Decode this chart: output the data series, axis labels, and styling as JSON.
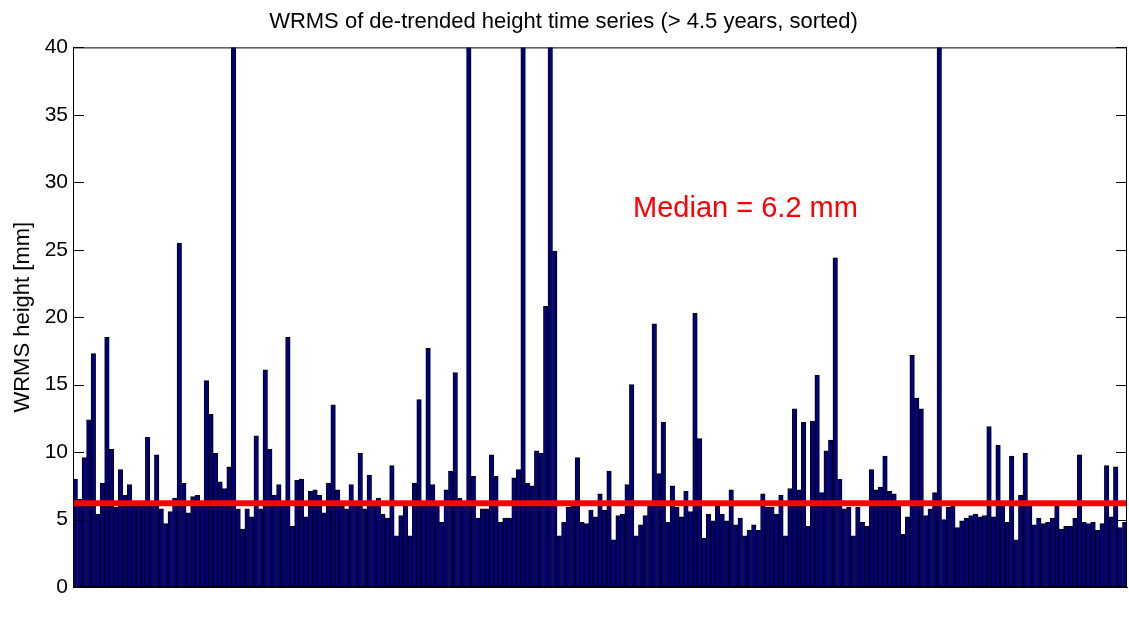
{
  "chart_data": {
    "type": "bar",
    "title": "WRMS of de-trended height time series (> 4.5 years, sorted)",
    "ylabel": "WRMS height [mm]",
    "categories": [
      null,
      null,
      null,
      null,
      null,
      null,
      null,
      null,
      null,
      null,
      null,
      null,
      null,
      null,
      null,
      null,
      null,
      null,
      null,
      null,
      null,
      null,
      null,
      null,
      null,
      null,
      null,
      null,
      null,
      null,
      null,
      null,
      null,
      null,
      null,
      null,
      null,
      null,
      null,
      null,
      null,
      null,
      null,
      null,
      null,
      null,
      null,
      null,
      null,
      null,
      null,
      null,
      null,
      null,
      null,
      null,
      null,
      null,
      null,
      null,
      null,
      null,
      null,
      null,
      null,
      null,
      null,
      null,
      null,
      null,
      null,
      null,
      null,
      null,
      null,
      null,
      null,
      null,
      null,
      null,
      null,
      null,
      null,
      null,
      null,
      null,
      null,
      null,
      null,
      null,
      null,
      null,
      null,
      null,
      null,
      null,
      null,
      null,
      null,
      null,
      null,
      null,
      null,
      null,
      null,
      null,
      null,
      null,
      null,
      null,
      null,
      null,
      null,
      null,
      null,
      null,
      null,
      null,
      null,
      null,
      null,
      null,
      null,
      null,
      null,
      null,
      null,
      null,
      null,
      null,
      null,
      null,
      null,
      null,
      null,
      null,
      null,
      null,
      null,
      null,
      null,
      null,
      null,
      null,
      null,
      null,
      null,
      null,
      null,
      null,
      null,
      null,
      null,
      null,
      null,
      null,
      null,
      null,
      null,
      null,
      null,
      null,
      null,
      null,
      null,
      null,
      null,
      null,
      null,
      null,
      null,
      null,
      null,
      null,
      null,
      null,
      null,
      null,
      null,
      null,
      null,
      null,
      null,
      null,
      null,
      null,
      null,
      null,
      null,
      null,
      null,
      null,
      null,
      null,
      null,
      null,
      null,
      null,
      null,
      null,
      null,
      null,
      null,
      null,
      null,
      null,
      null,
      null,
      null,
      null,
      null,
      null,
      null,
      null,
      null,
      null,
      null,
      null,
      null,
      null,
      null,
      null,
      null,
      null,
      null,
      null,
      null,
      null,
      null,
      null,
      null,
      null,
      null
    ],
    "values": [
      8.0,
      6.5,
      9.6,
      12.4,
      17.3,
      5.4,
      7.7,
      18.5,
      10.2,
      5.9,
      8.7,
      6.8,
      7.6,
      6.0,
      6.0,
      6.0,
      11.1,
      6.0,
      9.8,
      5.8,
      4.7,
      5.6,
      6.6,
      25.5,
      7.7,
      5.5,
      6.7,
      6.8,
      6.3,
      15.3,
      12.8,
      9.9,
      7.8,
      7.3,
      8.9,
      40,
      5.8,
      4.3,
      5.8,
      5.2,
      11.2,
      5.8,
      16.1,
      10.2,
      6.8,
      7.6,
      6.2,
      18.5,
      4.5,
      7.9,
      8.0,
      5.2,
      7.1,
      7.2,
      6.8,
      5.5,
      7.7,
      13.5,
      7.2,
      6.0,
      5.8,
      7.6,
      6.2,
      9.9,
      5.8,
      8.3,
      6.2,
      6.6,
      5.4,
      5.1,
      9.0,
      3.8,
      5.3,
      6.0,
      3.8,
      7.7,
      13.9,
      6.0,
      17.7,
      7.6,
      6.2,
      4.8,
      7.2,
      8.6,
      15.9,
      6.6,
      6.2,
      40,
      8.2,
      5.1,
      5.8,
      5.8,
      9.8,
      8.2,
      4.8,
      5.1,
      5.1,
      8.1,
      8.7,
      40,
      7.7,
      7.5,
      10.1,
      9.9,
      20.8,
      40,
      24.9,
      3.8,
      4.8,
      5.9,
      6.2,
      9.6,
      4.8,
      4.7,
      5.7,
      5.2,
      6.9,
      5.7,
      8.6,
      3.5,
      5.3,
      5.4,
      7.6,
      15.0,
      3.8,
      4.6,
      5.3,
      6.2,
      19.5,
      8.4,
      12.2,
      4.8,
      7.5,
      5.9,
      5.2,
      7.1,
      5.6,
      20.3,
      11.0,
      3.6,
      5.4,
      4.9,
      6.0,
      5.4,
      4.9,
      7.2,
      4.6,
      5.1,
      3.8,
      4.2,
      4.6,
      4.2,
      6.9,
      5.9,
      5.9,
      5.4,
      6.8,
      3.8,
      7.3,
      13.2,
      7.2,
      12.2,
      4.5,
      12.3,
      15.7,
      7.0,
      10.1,
      10.9,
      24.4,
      8.0,
      5.8,
      5.9,
      3.8,
      5.9,
      4.8,
      4.5,
      8.7,
      7.2,
      7.4,
      9.7,
      7.1,
      6.9,
      6.2,
      3.9,
      5.2,
      17.2,
      14.0,
      13.2,
      5.3,
      5.8,
      7.0,
      40,
      5.0,
      5.9,
      6.1,
      4.4,
      4.9,
      5.1,
      5.3,
      5.4,
      5.2,
      5.3,
      11.9,
      5.2,
      10.5,
      6.2,
      4.8,
      9.7,
      3.5,
      6.8,
      9.9,
      6.2,
      4.6,
      5.1,
      4.7,
      4.8,
      5.1,
      6.0,
      4.3,
      4.5,
      4.5,
      5.1,
      9.8,
      4.8,
      4.7,
      4.8,
      4.2,
      4.7,
      9.0,
      5.2,
      8.9,
      4.4,
      4.8
    ],
    "color": "#000080",
    "ylim": [
      0,
      40
    ],
    "yticks": [
      0,
      5,
      10,
      15,
      20,
      25,
      30,
      35,
      40
    ],
    "ref_lines": [
      {
        "axis": "y",
        "value": 6.2,
        "label": "Median = 6.2 mm",
        "color": "#ff0000"
      }
    ]
  }
}
